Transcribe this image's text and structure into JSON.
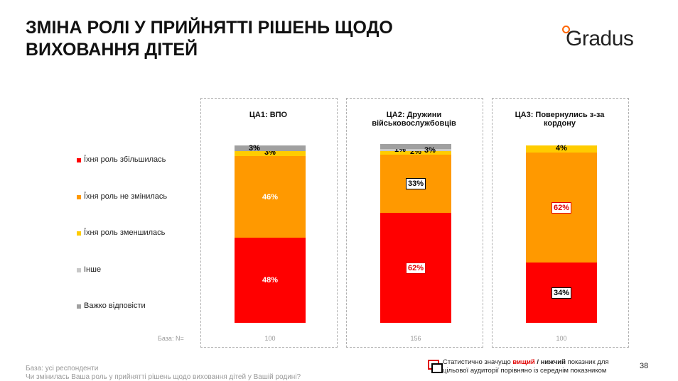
{
  "header": {
    "title": "ЗМІНА РОЛІ У ПРИЙНЯТТІ РІШЕНЬ ЩОДО ВИХОВАННЯ ДІТЕЙ",
    "logo": "Gradus"
  },
  "chart_data": {
    "type": "stacked_bar",
    "categories": [
      "ЦА1: ВПО",
      "ЦА2: Дружини військовослужбовців",
      "ЦА3: Повернулись з-за кордону"
    ],
    "ylim": [
      0,
      100
    ],
    "series": [
      {
        "name": "Їхня роль збільшилась",
        "color": "#ff0000",
        "values": [
          48,
          62,
          34
        ],
        "value_labels": [
          "48%",
          "62%",
          "34%"
        ],
        "highlight": [
          null,
          "higher",
          "lower"
        ]
      },
      {
        "name": "Їхня роль не змінилась",
        "color": "#ff9900",
        "values": [
          46,
          33,
          62
        ],
        "value_labels": [
          "46%",
          "33%",
          "62%"
        ],
        "highlight": [
          null,
          "lower",
          "higher"
        ]
      },
      {
        "name": "Їхня роль зменшилась",
        "color": "#ffcc00",
        "values": [
          3,
          2,
          4
        ],
        "value_labels": [
          "3%",
          "2%",
          "4%"
        ],
        "highlight": [
          null,
          null,
          null
        ]
      },
      {
        "name": "Інше",
        "color": "#c8c8c8",
        "values": [
          null,
          1,
          null
        ],
        "value_labels": [
          null,
          "1%",
          null
        ],
        "highlight": [
          null,
          null,
          null
        ]
      },
      {
        "name": "Важко відповісти",
        "color": "#a0a0a0",
        "values": [
          3,
          3,
          null
        ],
        "value_labels": [
          "3%",
          "3%",
          null
        ],
        "highlight": [
          null,
          null,
          null
        ]
      }
    ],
    "base_label": "База: N=",
    "base_n": [
      100,
      156,
      100
    ]
  },
  "footer": {
    "base": "База: усі респонденти",
    "question": "Чи змінилась Ваша роль у прийнятті рішень щодо виховання дітей у Вашій родині?",
    "note": [
      "Статистично значущо ",
      "вищий",
      " / ",
      "нижчий",
      " показник для цільової аудиторії порівняно із середнім показником"
    ],
    "page": "38"
  }
}
